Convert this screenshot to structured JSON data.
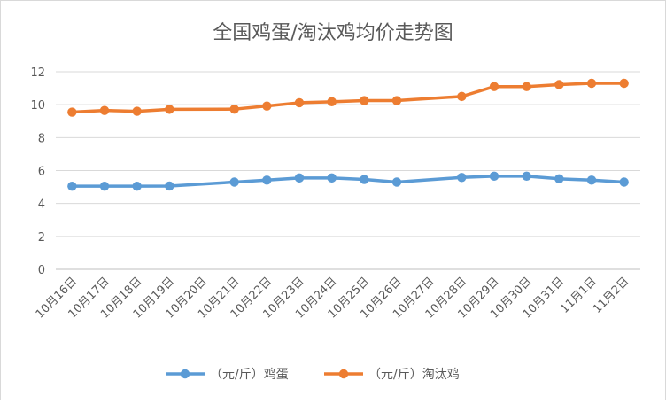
{
  "chart_data": {
    "type": "line",
    "title": "全国鸡蛋/淘汰鸡均价走势图",
    "categories": [
      "10月16日",
      "10月17日",
      "10月18日",
      "10月19日",
      "10月20日",
      "10月21日",
      "10月22日",
      "10月23日",
      "10月24日",
      "10月25日",
      "10月26日",
      "10月27日",
      "10月28日",
      "10月29日",
      "10月30日",
      "10月31日",
      "11月1日",
      "11月2日"
    ],
    "series": [
      {
        "name": "（元/斤）鸡蛋",
        "color": "#5b9bd5",
        "values": [
          5.05,
          5.05,
          5.05,
          5.06,
          null,
          5.3,
          5.42,
          5.55,
          5.55,
          5.46,
          5.3,
          null,
          5.58,
          5.66,
          5.66,
          5.5,
          5.42,
          5.3
        ]
      },
      {
        "name": "（元/斤）淘汰鸡",
        "color": "#ed7d31",
        "values": [
          9.55,
          9.65,
          9.6,
          9.72,
          null,
          9.73,
          9.92,
          10.12,
          10.18,
          10.25,
          10.25,
          null,
          10.5,
          11.1,
          11.1,
          11.22,
          11.3,
          11.3
        ]
      }
    ],
    "ylim": [
      0,
      12
    ],
    "yticks": [
      "0",
      "2",
      "4",
      "6",
      "8",
      "10",
      "12"
    ],
    "grid": true,
    "legend_position": "bottom"
  }
}
